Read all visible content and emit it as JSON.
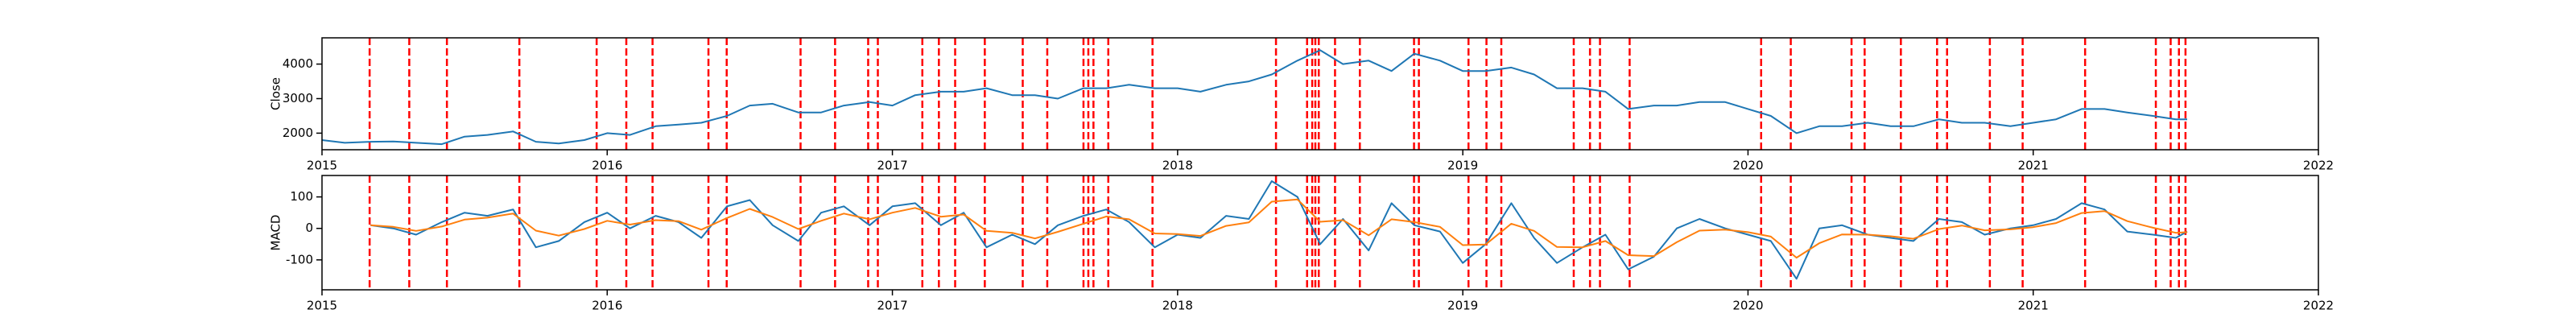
{
  "chart_data": [
    {
      "type": "line",
      "ylabel": "Close",
      "x": [
        2015.0,
        2015.08,
        2015.17,
        2015.25,
        2015.33,
        2015.42,
        2015.5,
        2015.58,
        2015.67,
        2015.75,
        2015.83,
        2015.92,
        2016.0,
        2016.08,
        2016.17,
        2016.25,
        2016.33,
        2016.42,
        2016.5,
        2016.58,
        2016.67,
        2016.75,
        2016.83,
        2016.92,
        2017.0,
        2017.08,
        2017.17,
        2017.25,
        2017.33,
        2017.42,
        2017.5,
        2017.58,
        2017.67,
        2017.75,
        2017.83,
        2017.92,
        2018.0,
        2018.08,
        2018.17,
        2018.25,
        2018.33,
        2018.42,
        2018.5,
        2018.58,
        2018.67,
        2018.75,
        2018.83,
        2018.92,
        2019.0,
        2019.08,
        2019.17,
        2019.25,
        2019.33,
        2019.42,
        2019.5,
        2019.58,
        2019.67,
        2019.75,
        2019.83,
        2019.92,
        2020.0,
        2020.08,
        2020.17,
        2020.25,
        2020.33,
        2020.42,
        2020.5,
        2020.58,
        2020.67,
        2020.75,
        2020.83,
        2020.92,
        2021.0,
        2021.08,
        2021.17,
        2021.25,
        2021.33,
        2021.42,
        2021.5,
        2021.54
      ],
      "series": [
        {
          "color": "#1f77b4",
          "values": [
            1800,
            1720,
            1750,
            1760,
            1720,
            1680,
            1900,
            1950,
            2050,
            1750,
            1700,
            1800,
            2000,
            1950,
            2200,
            2250,
            2300,
            2500,
            2800,
            2850,
            2600,
            2600,
            2800,
            2900,
            2800,
            3100,
            3200,
            3200,
            3300,
            3100,
            3100,
            3000,
            3300,
            3300,
            3400,
            3300,
            3300,
            3200,
            3400,
            3500,
            3700,
            4100,
            4400,
            4000,
            4100,
            3800,
            4300,
            4100,
            3800,
            3800,
            3900,
            3700,
            3300,
            3300,
            3200,
            2700,
            2800,
            2800,
            2900,
            2900,
            2700,
            2500,
            2000,
            2200,
            2200,
            2300,
            2200,
            2200,
            2400,
            2300,
            2300,
            2200,
            2300,
            2400,
            2700,
            2700,
            2600,
            2500,
            2400,
            2400
          ]
        }
      ],
      "xlim": [
        2015,
        2022
      ],
      "xticks": [
        2015,
        2016,
        2017,
        2018,
        2019,
        2020,
        2021,
        2022
      ],
      "ylim": [
        1520,
        4760
      ],
      "yticks": [
        2000,
        3000,
        4000
      ],
      "vlines": {
        "color": "red",
        "x": [
          2015.167,
          2015.306,
          2015.438,
          2015.692,
          2015.963,
          2016.067,
          2016.159,
          2016.355,
          2016.419,
          2016.678,
          2016.799,
          2016.915,
          2016.949,
          2017.105,
          2017.163,
          2017.22,
          2017.324,
          2017.457,
          2017.543,
          2017.67,
          2017.687,
          2017.705,
          2017.757,
          2017.912,
          2018.345,
          2018.454,
          2018.472,
          2018.483,
          2018.495,
          2018.552,
          2018.639,
          2018.829,
          2018.846,
          2019.02,
          2019.083,
          2019.135,
          2019.389,
          2019.446,
          2019.481,
          2019.585,
          2020.046,
          2020.15,
          2020.363,
          2020.409,
          2020.536,
          2020.663,
          2020.698,
          2020.848,
          2020.963,
          2021.182,
          2021.43,
          2021.482,
          2021.511,
          2021.534
        ]
      }
    },
    {
      "type": "line",
      "ylabel": "MACD",
      "x": [
        2015.17,
        2015.25,
        2015.33,
        2015.42,
        2015.5,
        2015.58,
        2015.67,
        2015.75,
        2015.83,
        2015.92,
        2016.0,
        2016.08,
        2016.17,
        2016.25,
        2016.33,
        2016.42,
        2016.5,
        2016.58,
        2016.67,
        2016.75,
        2016.83,
        2016.92,
        2017.0,
        2017.08,
        2017.17,
        2017.25,
        2017.33,
        2017.42,
        2017.5,
        2017.58,
        2017.67,
        2017.75,
        2017.83,
        2017.92,
        2018.0,
        2018.08,
        2018.17,
        2018.25,
        2018.33,
        2018.42,
        2018.5,
        2018.58,
        2018.67,
        2018.75,
        2018.83,
        2018.92,
        2019.0,
        2019.08,
        2019.17,
        2019.25,
        2019.33,
        2019.42,
        2019.5,
        2019.58,
        2019.67,
        2019.75,
        2019.83,
        2019.92,
        2020.0,
        2020.08,
        2020.17,
        2020.25,
        2020.33,
        2020.42,
        2020.5,
        2020.58,
        2020.67,
        2020.75,
        2020.83,
        2020.92,
        2021.0,
        2021.08,
        2021.17,
        2021.25,
        2021.33,
        2021.42,
        2021.5,
        2021.54
      ],
      "series": [
        {
          "color": "#1f77b4",
          "values": [
            10,
            0,
            -20,
            20,
            50,
            40,
            60,
            -60,
            -40,
            20,
            50,
            0,
            40,
            20,
            -30,
            70,
            90,
            10,
            -40,
            50,
            70,
            10,
            70,
            80,
            10,
            50,
            -60,
            -20,
            -50,
            10,
            40,
            60,
            20,
            -60,
            -20,
            -30,
            40,
            30,
            150,
            100,
            -50,
            30,
            -70,
            80,
            10,
            -10,
            -110,
            -50,
            80,
            -30,
            -110,
            -60,
            -20,
            -130,
            -90,
            0,
            30,
            0,
            -20,
            -40,
            -160,
            0,
            10,
            -20,
            -30,
            -40,
            30,
            20,
            -20,
            0,
            10,
            30,
            80,
            60,
            -10,
            -20,
            -30,
            -10
          ]
        },
        {
          "color": "#ff7f0e",
          "values": [
            10,
            5,
            -8,
            6,
            28,
            34,
            47,
            -7,
            -23,
            -2,
            24,
            12,
            26,
            23,
            -4,
            33,
            62,
            36,
            -2,
            24,
            47,
            29,
            50,
            65,
            37,
            44,
            -8,
            -14,
            -32,
            -11,
            15,
            38,
            29,
            -16,
            -18,
            -24,
            8,
            19,
            85,
            92,
            21,
            26,
            -22,
            29,
            20,
            5,
            -53,
            -51,
            15,
            -8,
            -59,
            -60,
            -40,
            -85,
            -88,
            -44,
            -7,
            -4,
            -12,
            -26,
            -93,
            -47,
            -19,
            -20,
            -25,
            -33,
            -2,
            9,
            -6,
            -3,
            4,
            17,
            49,
            55,
            23,
            2,
            -14,
            -12
          ]
        }
      ],
      "xlim": [
        2015,
        2022
      ],
      "xticks": [
        2015,
        2016,
        2017,
        2018,
        2019,
        2020,
        2021,
        2022
      ],
      "ylim": [
        -195,
        168
      ],
      "yticks": [
        -100,
        0,
        100
      ],
      "vlines": {
        "color": "red",
        "x": [
          2015.167,
          2015.306,
          2015.438,
          2015.692,
          2015.963,
          2016.067,
          2016.159,
          2016.355,
          2016.419,
          2016.678,
          2016.799,
          2016.915,
          2016.949,
          2017.105,
          2017.163,
          2017.22,
          2017.324,
          2017.457,
          2017.543,
          2017.67,
          2017.687,
          2017.705,
          2017.757,
          2017.912,
          2018.345,
          2018.454,
          2018.472,
          2018.483,
          2018.495,
          2018.552,
          2018.639,
          2018.829,
          2018.846,
          2019.02,
          2019.083,
          2019.135,
          2019.389,
          2019.446,
          2019.481,
          2019.585,
          2020.046,
          2020.15,
          2020.363,
          2020.409,
          2020.536,
          2020.663,
          2020.698,
          2020.848,
          2020.963,
          2021.182,
          2021.43,
          2021.482,
          2021.511,
          2021.534
        ]
      }
    }
  ]
}
